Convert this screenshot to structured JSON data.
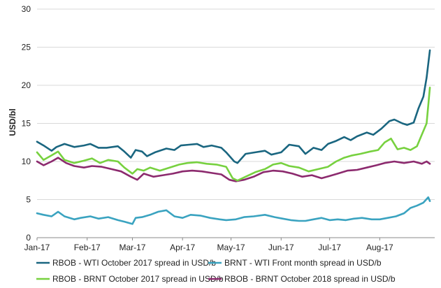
{
  "chart_data": {
    "type": "line",
    "title": "",
    "xlabel": "",
    "ylabel": "USD/bl",
    "ylim": [
      0,
      30
    ],
    "yticks": [
      0,
      5,
      10,
      15,
      20,
      25,
      30
    ],
    "x_range": [
      "2017-01-01",
      "2017-09-04"
    ],
    "xtick_labels": [
      {
        "label": "Jan-17",
        "date": "2017-01-01"
      },
      {
        "label": "Feb-17",
        "date": "2017-02-01"
      },
      {
        "label": "Mar-17",
        "date": "2017-03-01"
      },
      {
        "label": "Apr-17",
        "date": "2017-04-01"
      },
      {
        "label": "May-17",
        "date": "2017-05-01"
      },
      {
        "label": "Jun-17",
        "date": "2017-06-01"
      },
      {
        "label": "Jul-17",
        "date": "2017-07-01"
      },
      {
        "label": "Aug-17",
        "date": "2017-08-01"
      }
    ],
    "grid": "horizontal",
    "legend_position": "bottom",
    "series": [
      {
        "name": "RBOB - WTI October 2017 spread in USD/b",
        "color": "#1a6680",
        "x": [
          "2017-01-01",
          "2017-01-05",
          "2017-01-10",
          "2017-01-13",
          "2017-01-18",
          "2017-01-24",
          "2017-01-30",
          "2017-02-03",
          "2017-02-08",
          "2017-02-13",
          "2017-02-20",
          "2017-02-24",
          "2017-02-28",
          "2017-03-03",
          "2017-03-07",
          "2017-03-10",
          "2017-03-15",
          "2017-03-22",
          "2017-03-27",
          "2017-03-31",
          "2017-04-05",
          "2017-04-10",
          "2017-04-14",
          "2017-04-19",
          "2017-04-25",
          "2017-04-28",
          "2017-05-03",
          "2017-05-05",
          "2017-05-10",
          "2017-05-16",
          "2017-05-22",
          "2017-05-26",
          "2017-06-01",
          "2017-06-06",
          "2017-06-12",
          "2017-06-16",
          "2017-06-21",
          "2017-06-26",
          "2017-06-30",
          "2017-07-05",
          "2017-07-10",
          "2017-07-14",
          "2017-07-18",
          "2017-07-24",
          "2017-07-28",
          "2017-08-02",
          "2017-08-07",
          "2017-08-10",
          "2017-08-15",
          "2017-08-18",
          "2017-08-22",
          "2017-08-25",
          "2017-08-28",
          "2017-08-30",
          "2017-09-01"
        ],
        "values": [
          12.6,
          12.1,
          11.4,
          11.9,
          12.3,
          11.9,
          12.1,
          12.3,
          11.8,
          11.8,
          12.0,
          11.3,
          10.5,
          11.5,
          11.3,
          10.7,
          11.2,
          11.7,
          11.5,
          12.1,
          12.2,
          12.3,
          11.9,
          12.1,
          11.8,
          11.2,
          10.0,
          9.8,
          11.0,
          11.2,
          11.4,
          10.9,
          11.2,
          12.2,
          12.0,
          11.0,
          11.8,
          11.5,
          12.3,
          12.7,
          13.2,
          12.8,
          13.3,
          13.8,
          13.5,
          14.3,
          15.3,
          15.5,
          15.0,
          14.8,
          15.1,
          17.0,
          18.5,
          21.0,
          24.6
        ]
      },
      {
        "name": "BRNT - WTI Front month spread in USD/b",
        "color": "#3aa3c0",
        "x": [
          "2017-01-01",
          "2017-01-05",
          "2017-01-10",
          "2017-01-14",
          "2017-01-18",
          "2017-01-24",
          "2017-01-28",
          "2017-02-03",
          "2017-02-08",
          "2017-02-14",
          "2017-02-20",
          "2017-02-24",
          "2017-03-01",
          "2017-03-03",
          "2017-03-07",
          "2017-03-12",
          "2017-03-17",
          "2017-03-22",
          "2017-03-27",
          "2017-04-01",
          "2017-04-06",
          "2017-04-12",
          "2017-04-18",
          "2017-04-24",
          "2017-04-28",
          "2017-05-04",
          "2017-05-09",
          "2017-05-15",
          "2017-05-22",
          "2017-05-28",
          "2017-06-02",
          "2017-06-07",
          "2017-06-12",
          "2017-06-16",
          "2017-06-21",
          "2017-06-26",
          "2017-07-01",
          "2017-07-06",
          "2017-07-11",
          "2017-07-16",
          "2017-07-21",
          "2017-07-27",
          "2017-08-01",
          "2017-08-06",
          "2017-08-11",
          "2017-08-16",
          "2017-08-20",
          "2017-08-24",
          "2017-08-28",
          "2017-08-31",
          "2017-09-01"
        ],
        "values": [
          3.2,
          3.0,
          2.8,
          3.4,
          2.8,
          2.4,
          2.6,
          2.8,
          2.5,
          2.7,
          2.3,
          2.1,
          1.8,
          2.6,
          2.7,
          3.0,
          3.4,
          3.6,
          2.8,
          2.6,
          3.0,
          2.9,
          2.6,
          2.4,
          2.3,
          2.4,
          2.7,
          2.8,
          3.0,
          2.7,
          2.5,
          2.3,
          2.2,
          2.2,
          2.4,
          2.6,
          2.3,
          2.4,
          2.3,
          2.5,
          2.6,
          2.4,
          2.4,
          2.6,
          2.8,
          3.2,
          3.9,
          4.2,
          4.6,
          5.3,
          4.8
        ]
      },
      {
        "name": "RBOB - BRNT October 2017 spread in USD/b",
        "color": "#77d13f",
        "x": [
          "2017-01-01",
          "2017-01-05",
          "2017-01-10",
          "2017-01-14",
          "2017-01-18",
          "2017-01-24",
          "2017-01-30",
          "2017-02-04",
          "2017-02-09",
          "2017-02-14",
          "2017-02-20",
          "2017-02-24",
          "2017-03-01",
          "2017-03-04",
          "2017-03-08",
          "2017-03-12",
          "2017-03-18",
          "2017-03-24",
          "2017-03-30",
          "2017-04-04",
          "2017-04-10",
          "2017-04-16",
          "2017-04-22",
          "2017-04-28",
          "2017-05-02",
          "2017-05-05",
          "2017-05-10",
          "2017-05-16",
          "2017-05-22",
          "2017-05-27",
          "2017-06-01",
          "2017-06-06",
          "2017-06-12",
          "2017-06-18",
          "2017-06-24",
          "2017-06-30",
          "2017-07-05",
          "2017-07-10",
          "2017-07-15",
          "2017-07-20",
          "2017-07-26",
          "2017-07-31",
          "2017-08-04",
          "2017-08-08",
          "2017-08-12",
          "2017-08-16",
          "2017-08-20",
          "2017-08-24",
          "2017-08-27",
          "2017-08-30",
          "2017-09-01"
        ],
        "values": [
          11.2,
          10.2,
          10.8,
          11.3,
          10.2,
          9.8,
          10.1,
          10.4,
          9.8,
          10.2,
          10.0,
          9.2,
          8.4,
          9.0,
          8.8,
          9.2,
          8.8,
          9.2,
          9.6,
          9.8,
          9.9,
          9.7,
          9.6,
          9.3,
          7.8,
          7.5,
          8.0,
          8.6,
          9.0,
          9.6,
          9.8,
          9.4,
          9.2,
          8.7,
          9.0,
          9.3,
          10.0,
          10.5,
          10.8,
          11.0,
          11.3,
          11.5,
          12.5,
          13.0,
          11.6,
          11.8,
          11.5,
          12.0,
          13.5,
          15.0,
          19.7
        ]
      },
      {
        "name": "RBOB - BRNT October 2018 spread in USD/b",
        "color": "#8c2a6e",
        "x": [
          "2017-01-01",
          "2017-01-05",
          "2017-01-10",
          "2017-01-14",
          "2017-01-19",
          "2017-01-24",
          "2017-01-30",
          "2017-02-04",
          "2017-02-10",
          "2017-02-16",
          "2017-02-22",
          "2017-02-28",
          "2017-03-04",
          "2017-03-08",
          "2017-03-14",
          "2017-03-20",
          "2017-03-26",
          "2017-04-01",
          "2017-04-07",
          "2017-04-13",
          "2017-04-19",
          "2017-04-25",
          "2017-04-30",
          "2017-05-04",
          "2017-05-09",
          "2017-05-15",
          "2017-05-21",
          "2017-05-27",
          "2017-06-02",
          "2017-06-08",
          "2017-06-14",
          "2017-06-20",
          "2017-06-26",
          "2017-07-01",
          "2017-07-06",
          "2017-07-12",
          "2017-07-18",
          "2017-07-24",
          "2017-07-30",
          "2017-08-04",
          "2017-08-10",
          "2017-08-16",
          "2017-08-22",
          "2017-08-27",
          "2017-08-30",
          "2017-09-01"
        ],
        "values": [
          10.0,
          9.5,
          10.0,
          10.5,
          9.8,
          9.4,
          9.2,
          9.4,
          9.3,
          9.0,
          8.7,
          8.0,
          7.6,
          8.4,
          8.0,
          8.2,
          8.4,
          8.7,
          8.8,
          8.7,
          8.5,
          8.3,
          7.6,
          7.4,
          7.6,
          8.0,
          8.6,
          8.8,
          8.7,
          8.4,
          8.0,
          8.2,
          7.8,
          8.1,
          8.4,
          8.8,
          8.9,
          9.2,
          9.5,
          9.8,
          10.0,
          9.8,
          10.0,
          9.7,
          10.0,
          9.7
        ]
      }
    ]
  }
}
